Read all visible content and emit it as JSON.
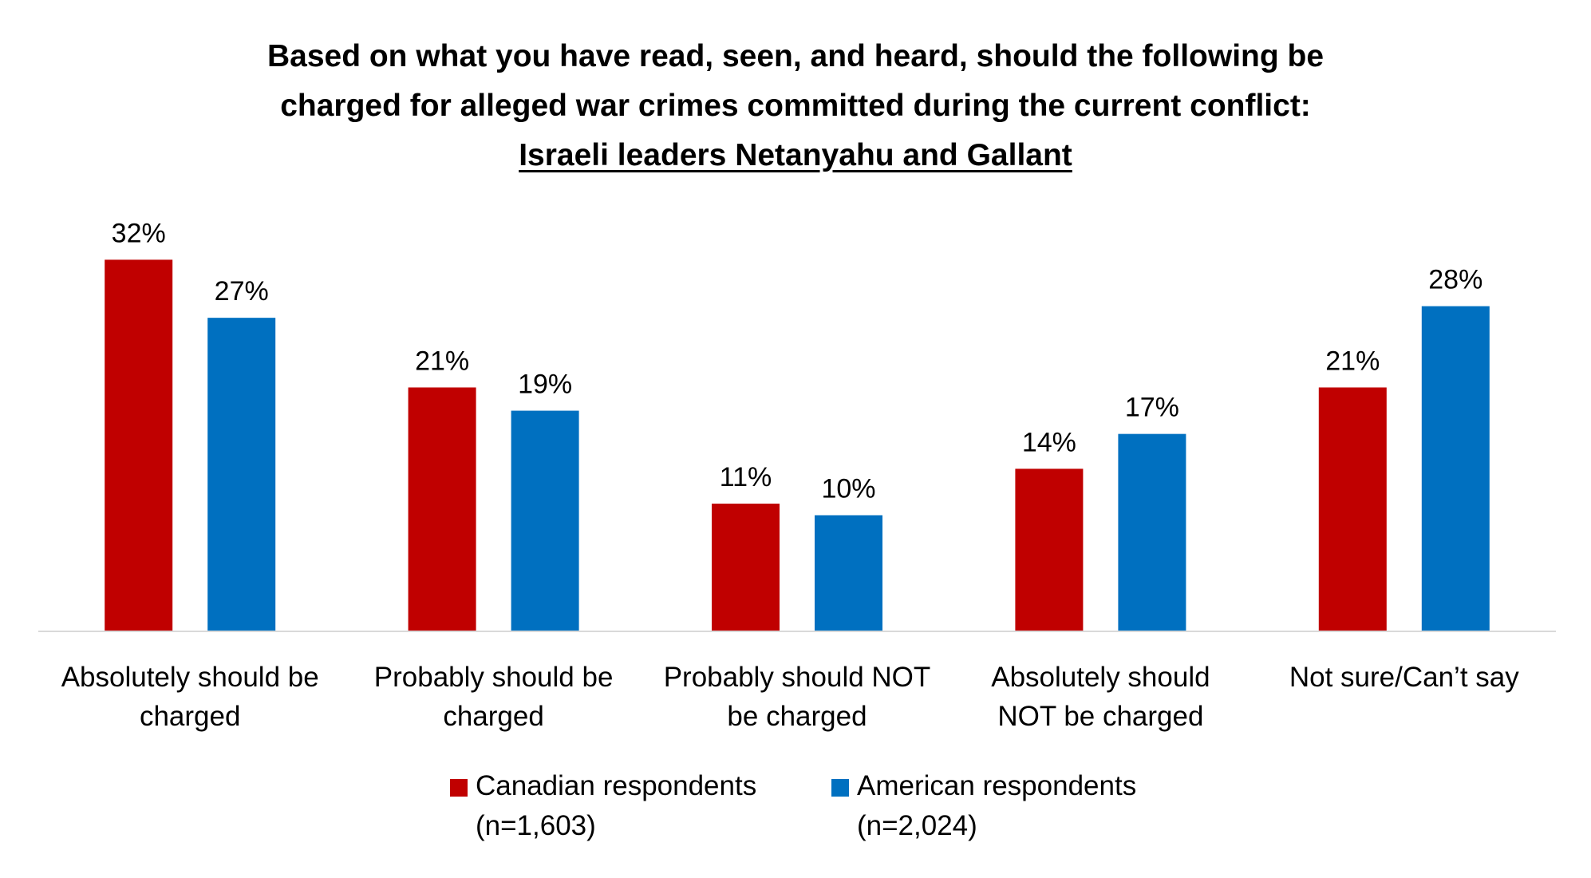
{
  "title": {
    "line1": "Based on what you have read, seen, and heard, should the following be",
    "line2": "charged for alleged war crimes committed during the current conflict:",
    "line3": "Israeli leaders Netanyahu and Gallant"
  },
  "chart_data": {
    "type": "bar",
    "title": "Based on what you have read, seen, and heard, should the following be charged for alleged war crimes committed during the current conflict: Israeli leaders Netanyahu and Gallant",
    "categories": [
      [
        "Absolutely should be",
        "charged"
      ],
      [
        "Probably should be",
        "charged"
      ],
      [
        "Probably should NOT",
        "be charged"
      ],
      [
        "Absolutely should",
        "NOT be charged"
      ],
      [
        "Not sure/Can’t say"
      ]
    ],
    "series": [
      {
        "name": "Canadian respondents",
        "name_line2": "(n=1,603)",
        "color": "#C00000",
        "values": [
          32,
          21,
          11,
          14,
          21
        ],
        "labels": [
          "32%",
          "21%",
          "11%",
          "14%",
          "21%"
        ]
      },
      {
        "name": "American respondents",
        "name_line2": "(n=2,024)",
        "color": "#0070C0",
        "values": [
          27,
          19,
          10,
          17,
          28
        ],
        "labels": [
          "27%",
          "19%",
          "10%",
          "17%",
          "28%"
        ]
      }
    ],
    "ylim": [
      0,
      40
    ],
    "xlabel": "",
    "ylabel": "",
    "grid": false,
    "legend": "bottom"
  }
}
